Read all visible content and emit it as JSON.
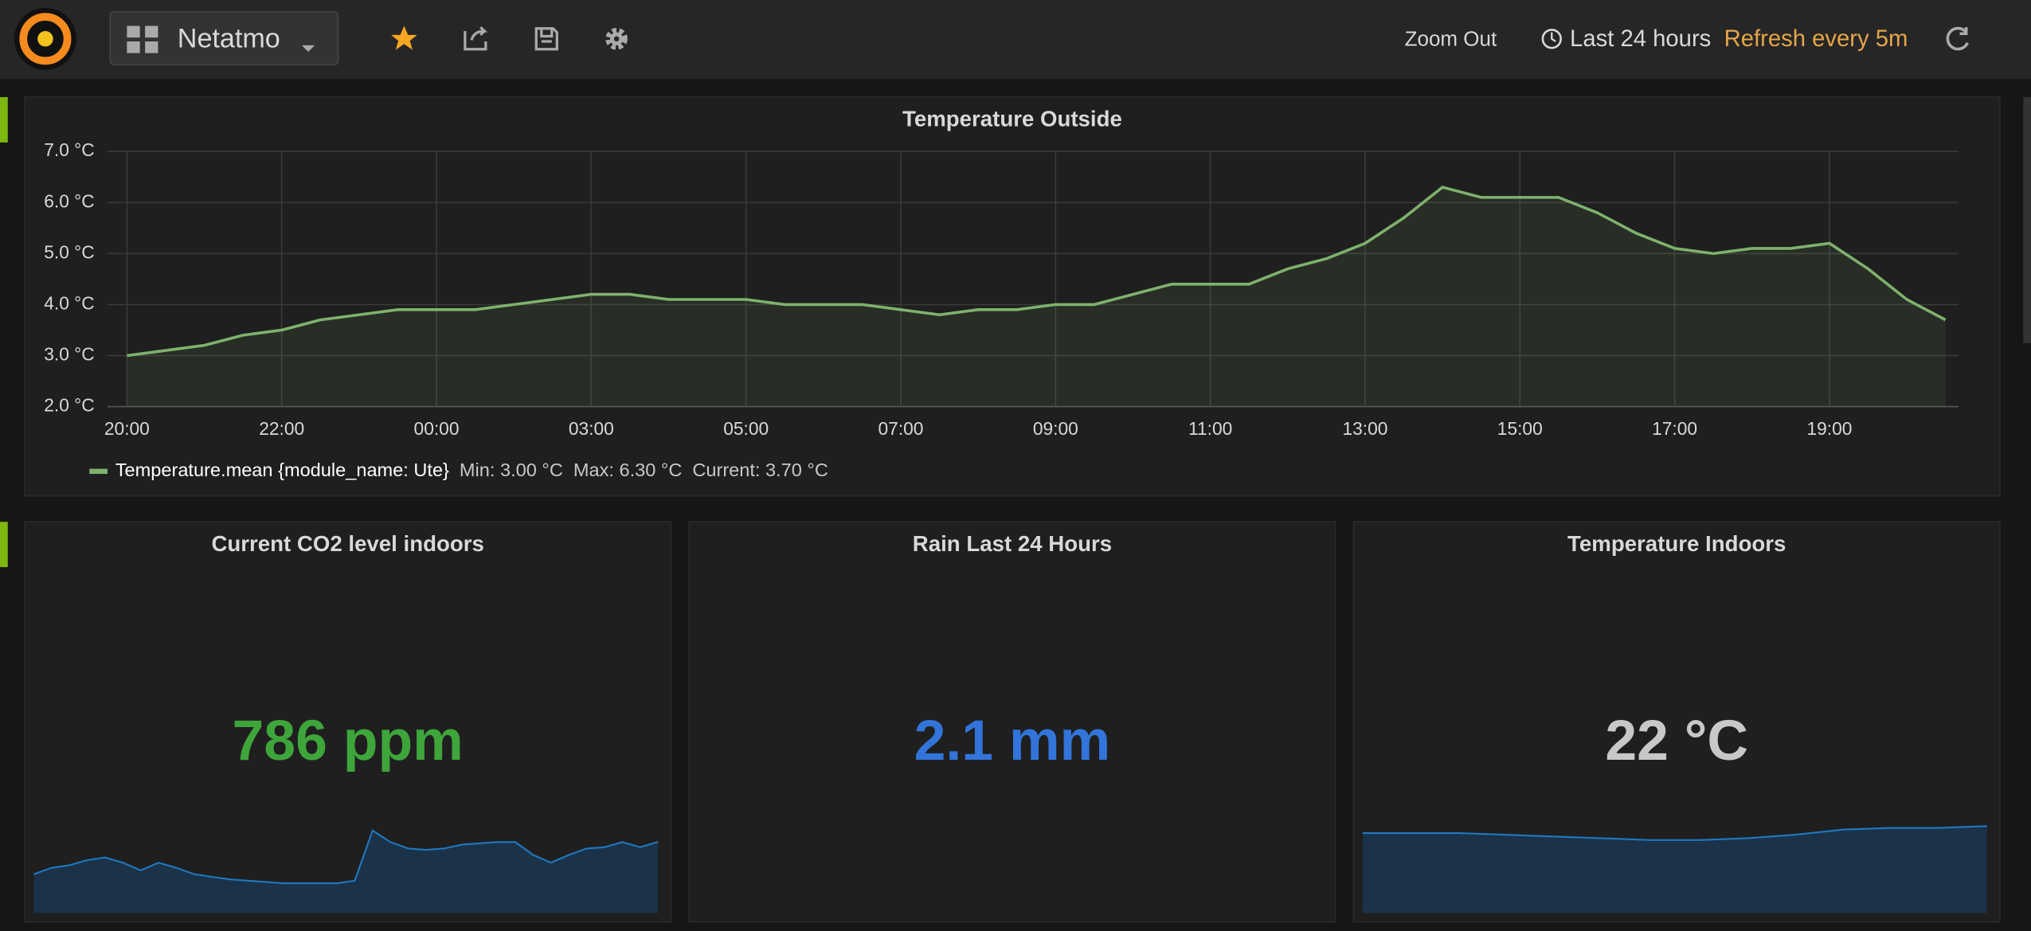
{
  "header": {
    "dashboard_title": "Netatmo",
    "zoom_out": "Zoom Out",
    "time_range": "Last 24 hours",
    "refresh": "Refresh every 5m"
  },
  "chart_data": [
    {
      "type": "line",
      "title": "Temperature Outside",
      "x": [
        "20:00",
        "20:30",
        "21:00",
        "21:30",
        "22:00",
        "22:30",
        "23:00",
        "23:30",
        "00:00",
        "00:30",
        "01:00",
        "01:30",
        "03:00",
        "03:30",
        "04:00",
        "04:30",
        "05:00",
        "05:30",
        "06:00",
        "06:30",
        "07:00",
        "07:30",
        "08:00",
        "08:30",
        "09:00",
        "09:30",
        "10:00",
        "10:30",
        "11:00",
        "11:30",
        "12:00",
        "12:30",
        "13:00",
        "13:30",
        "14:00",
        "14:30",
        "15:00",
        "15:30",
        "16:00",
        "16:30",
        "17:00",
        "17:30",
        "18:00",
        "18:30",
        "19:00",
        "19:30",
        "20:00",
        "20:30"
      ],
      "series": [
        {
          "name": "Temperature.mean {module_name: Ute}",
          "color": "#7eb26d",
          "values": [
            3.0,
            3.1,
            3.2,
            3.4,
            3.5,
            3.7,
            3.8,
            3.9,
            3.9,
            3.9,
            4.0,
            4.1,
            4.2,
            4.2,
            4.1,
            4.1,
            4.1,
            4.0,
            4.0,
            4.0,
            3.9,
            3.8,
            3.9,
            3.9,
            4.0,
            4.0,
            4.2,
            4.4,
            4.4,
            4.4,
            4.7,
            4.9,
            5.2,
            5.7,
            6.3,
            6.1,
            6.1,
            6.1,
            5.8,
            5.4,
            5.1,
            5.0,
            5.1,
            5.1,
            5.2,
            4.7,
            4.1,
            3.7
          ]
        }
      ],
      "legend_stats": [
        "Min: 3.00 °C",
        "Max: 6.30 °C",
        "Current: 3.70 °C"
      ],
      "xticks": [
        "20:00",
        "22:00",
        "00:00",
        "03:00",
        "05:00",
        "07:00",
        "09:00",
        "11:00",
        "13:00",
        "15:00",
        "17:00",
        "19:00"
      ],
      "ylim": [
        2,
        7
      ],
      "yticks": [
        {
          "value": 2,
          "label": "2.0 °C"
        },
        {
          "value": 3,
          "label": "3.0 °C"
        },
        {
          "value": 4,
          "label": "4.0 °C"
        },
        {
          "value": 5,
          "label": "5.0 °C"
        },
        {
          "value": 6,
          "label": "6.0 °C"
        },
        {
          "value": 7,
          "label": "7.0 °C"
        }
      ],
      "grid": true
    },
    {
      "type": "stat",
      "title": "Current CO2 level indoors",
      "value_text": "786 ppm",
      "color": "#3ea53a",
      "sparkline": {
        "color": "#1f78c1",
        "ylim": [
          400,
          900
        ],
        "values": [
          610,
          645,
          659,
          687,
          701,
          673,
          631,
          673,
          645,
          610,
          596,
          582,
          575,
          568,
          561,
          561,
          561,
          561,
          575,
          848,
          785,
          750,
          743,
          750,
          771,
          778,
          785,
          785,
          715,
          673,
          715,
          750,
          757,
          785,
          757,
          786
        ]
      }
    },
    {
      "type": "stat",
      "title": "Rain Last 24 Hours",
      "value_text": "2.1 mm",
      "color": "#3274d9"
    },
    {
      "type": "stat",
      "title": "Temperature Indoors",
      "value_text": "22 °C",
      "color": "#c8c8c8",
      "sparkline": {
        "color": "#1f78c1",
        "ylim": [
          17,
          22.3
        ],
        "values": [
          21.6,
          21.6,
          21.6,
          21.5,
          21.4,
          21.3,
          21.2,
          21.2,
          21.3,
          21.5,
          21.8,
          21.9,
          21.9,
          22.0
        ]
      }
    }
  ]
}
